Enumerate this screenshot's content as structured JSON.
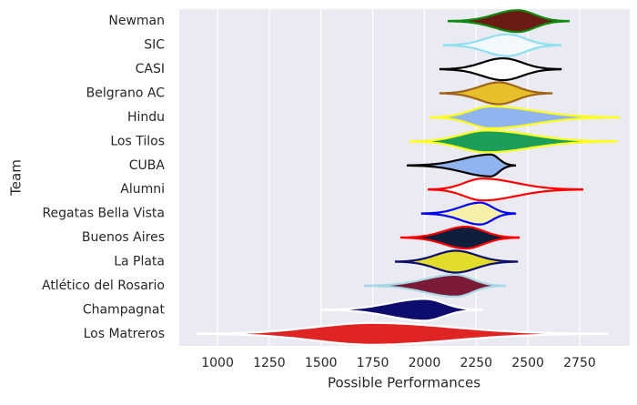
{
  "chart_data": {
    "type": "violin",
    "x_label": "Possible Performances",
    "y_label": "Team",
    "xlim": [
      815,
      2992
    ],
    "xticks": [
      1000,
      1250,
      1500,
      1750,
      2000,
      2250,
      2500,
      2750
    ],
    "grid": true,
    "categories": [
      "Newman",
      "SIC",
      "CASI",
      "Belgrano AC",
      "Hindu",
      "Los Tilos",
      "CUBA",
      "Alumni",
      "Regatas Bella Vista",
      "Buenos Aires",
      "La Plata",
      "Atlético del Rosario",
      "Champagnat",
      "Los Matreros"
    ],
    "violins": [
      {
        "min": 2117,
        "peak": 2450,
        "max": 2697,
        "fill": "#6b1a14",
        "edge": "#0f8a0f"
      },
      {
        "min": 2095,
        "peak": 2400,
        "max": 2658,
        "fill": "#f2f8fb",
        "edge": "#8ee0ee"
      },
      {
        "min": 2077,
        "peak": 2380,
        "max": 2658,
        "fill": "#ffffff",
        "edge": "#000000"
      },
      {
        "min": 2077,
        "peak": 2360,
        "max": 2614,
        "fill": "#e5c02a",
        "edge": "#a0651a"
      },
      {
        "min": 2029,
        "peak": 2320,
        "max": 2939,
        "fill": "#8fb4ef",
        "edge": "#ffff1a"
      },
      {
        "min": 1932,
        "peak": 2300,
        "max": 2926,
        "fill": "#1a9e5a",
        "edge": "#ffff1a"
      },
      {
        "min": 1919,
        "peak": 2320,
        "max": 2438,
        "fill": "#8fb4ef",
        "edge": "#000000"
      },
      {
        "min": 2020,
        "peak": 2280,
        "max": 2763,
        "fill": "#ffffff",
        "edge": "#ff0000"
      },
      {
        "min": 1989,
        "peak": 2270,
        "max": 2438,
        "fill": "#f4f0a8",
        "edge": "#0000ff"
      },
      {
        "min": 1888,
        "peak": 2200,
        "max": 2456,
        "fill": "#0d1f3c",
        "edge": "#ff0000"
      },
      {
        "min": 1862,
        "peak": 2150,
        "max": 2447,
        "fill": "#e2dc2a",
        "edge": "#0d0d6e"
      },
      {
        "min": 1712,
        "peak": 2150,
        "max": 2390,
        "fill": "#7a1a36",
        "edge": "#a8d8e6"
      },
      {
        "min": 1501,
        "peak": 2000,
        "max": 2280,
        "fill": "#0d0d6e",
        "edge": "#ffffff"
      },
      {
        "min": 903,
        "peak": 1750,
        "max": 2887,
        "fill": "#e02424",
        "edge": "#ffffff"
      }
    ]
  }
}
